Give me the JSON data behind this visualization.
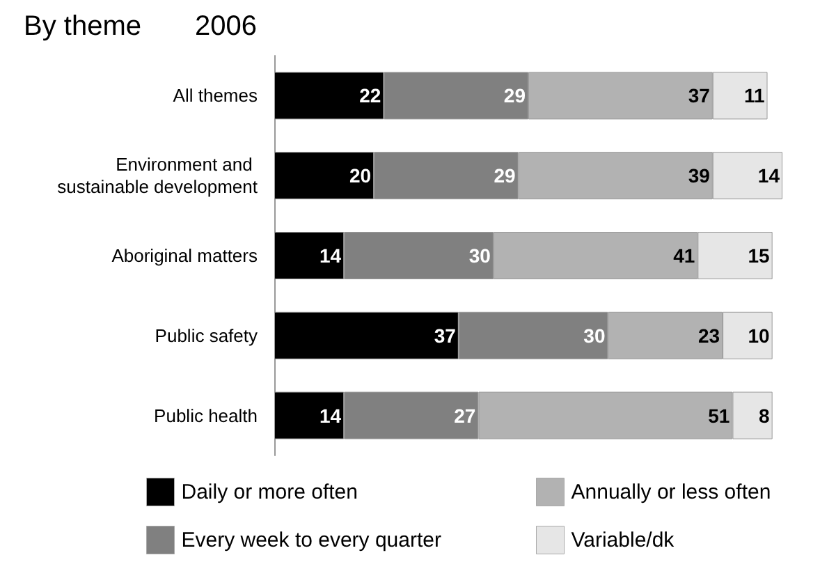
{
  "chart_data": {
    "type": "bar",
    "orientation": "horizontal",
    "stacked": true,
    "title": "By theme",
    "subtitle": "2006",
    "categories": [
      "All themes",
      "Environment and sustainable development",
      "Aboriginal matters",
      "Public safety",
      "Public health"
    ],
    "series": [
      {
        "name": "Daily or more often",
        "color": "#000000",
        "values": [
          22,
          20,
          14,
          37,
          14
        ]
      },
      {
        "name": "Every week to every quarter",
        "color": "#808080",
        "values": [
          29,
          29,
          30,
          30,
          27
        ]
      },
      {
        "name": "Annually or less often",
        "color": "#b2b2b2",
        "values": [
          37,
          39,
          41,
          23,
          51
        ]
      },
      {
        "name": "Variable/dk",
        "color": "#e6e6e6",
        "values": [
          11,
          14,
          15,
          10,
          8
        ]
      }
    ],
    "data_labels": true,
    "legend": "bottom",
    "grid": false
  }
}
